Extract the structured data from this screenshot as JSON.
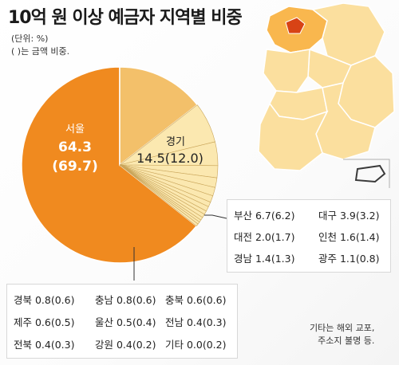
{
  "title": "10억 원 이상 예금자 지역별 비중",
  "unit": "(단위: %)",
  "note": "( )는 금액 비중.",
  "footnote": [
    "기타는 해외 교포,",
    "주소지 불명 등."
  ],
  "colors": {
    "seoul": "#f08a1f",
    "gyeonggi": "#f3c06a",
    "others": "#fbe8b0",
    "map_land": "#fbdf9e",
    "map_highlight": "#f9b74e",
    "map_seoul": "#d84315"
  },
  "chart_data": {
    "type": "pie",
    "title": "10억 원 이상 예금자 지역별 비중",
    "slices": [
      {
        "label": "서울",
        "value": 64.3,
        "amount": 69.7
      },
      {
        "label": "경기",
        "value": 14.5,
        "amount": 12.0
      },
      {
        "label": "부산",
        "value": 6.7,
        "amount": 6.2
      },
      {
        "label": "대구",
        "value": 3.9,
        "amount": 3.2
      },
      {
        "label": "대전",
        "value": 2.0,
        "amount": 1.7
      },
      {
        "label": "인천",
        "value": 1.6,
        "amount": 1.4
      },
      {
        "label": "경남",
        "value": 1.4,
        "amount": 1.3
      },
      {
        "label": "광주",
        "value": 1.1,
        "amount": 0.8
      },
      {
        "label": "경북",
        "value": 0.8,
        "amount": 0.6
      },
      {
        "label": "충남",
        "value": 0.8,
        "amount": 0.6
      },
      {
        "label": "충북",
        "value": 0.6,
        "amount": 0.6
      },
      {
        "label": "제주",
        "value": 0.6,
        "amount": 0.5
      },
      {
        "label": "울산",
        "value": 0.5,
        "amount": 0.4
      },
      {
        "label": "전남",
        "value": 0.4,
        "amount": 0.3
      },
      {
        "label": "전북",
        "value": 0.4,
        "amount": 0.3
      },
      {
        "label": "강원",
        "value": 0.4,
        "amount": 0.2
      },
      {
        "label": "기타",
        "value": 0.0,
        "amount": 0.2
      }
    ],
    "labels": {
      "seoul": {
        "name": "서울",
        "value": "64.3",
        "amount": "(69.7)"
      },
      "gyeonggi": {
        "name": "경기",
        "value": "14.5(12.0)"
      }
    },
    "right_box": [
      [
        "부산 6.7(6.2)",
        "대구 3.9(3.2)"
      ],
      [
        "대전 2.0(1.7)",
        "인천 1.6(1.4)"
      ],
      [
        "경남 1.4(1.3)",
        "광주 1.1(0.8)"
      ]
    ],
    "bottom_box": [
      [
        "경북 0.8(0.6)",
        "충남 0.8(0.6)",
        "충북 0.6(0.6)"
      ],
      [
        "제주 0.6(0.5)",
        "울산 0.5(0.4)",
        "전남 0.4(0.3)"
      ],
      [
        "전북 0.4(0.3)",
        "강원 0.4(0.2)",
        "기타 0.0(0.2)"
      ]
    ]
  }
}
